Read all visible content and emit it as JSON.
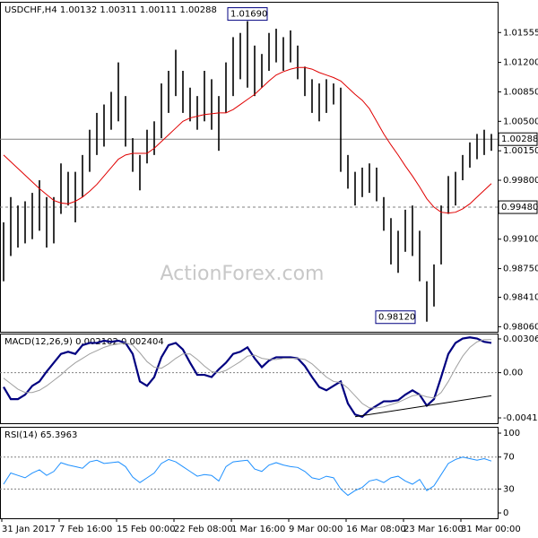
{
  "chart_data": [
    {
      "type": "hilo",
      "title": "USDCHF,H4 1.00132 1.00311 1.00111 1.00288",
      "watermark": "ActionForex.com",
      "categories": [
        "31 Jan 2017",
        null,
        null,
        null,
        null,
        null,
        null,
        null,
        "7 Feb 16:00",
        null,
        null,
        null,
        null,
        null,
        null,
        null,
        "15 Feb 00:00",
        null,
        null,
        null,
        null,
        null,
        null,
        null,
        "22 Feb 08:00",
        null,
        null,
        null,
        null,
        null,
        null,
        null,
        "1 Mar 16:00",
        null,
        null,
        null,
        null,
        null,
        null,
        null,
        "9 Mar 00:00",
        null,
        null,
        null,
        null,
        null,
        null,
        null,
        "16 Mar 08:00",
        null,
        null,
        null,
        null,
        null,
        null,
        null,
        "23 Mar 16:00",
        null,
        null,
        null,
        null,
        null,
        null,
        null,
        "31 Mar 00:00",
        null,
        null,
        null,
        null
      ],
      "color": "#000000",
      "high": [
        0.993,
        0.996,
        0.995,
        0.9955,
        0.9965,
        0.998,
        0.996,
        0.996,
        1.0,
        0.999,
        0.999,
        1.001,
        1.004,
        1.006,
        1.007,
        1.0085,
        1.012,
        1.008,
        1.003,
        1.001,
        1.004,
        1.005,
        1.0095,
        1.011,
        1.0135,
        1.011,
        1.009,
        1.008,
        1.011,
        1.01,
        1.008,
        1.012,
        1.015,
        1.0155,
        1.0169,
        1.014,
        1.013,
        1.0155,
        1.016,
        1.015,
        1.0158,
        1.014,
        1.0115,
        1.01,
        1.0095,
        1.01,
        1.0095,
        1.009,
        1.001,
        0.999,
        0.9995,
        1.0,
        0.9995,
        0.996,
        0.9935,
        0.992,
        0.9945,
        0.995,
        0.992,
        0.986,
        0.988,
        0.995,
        0.9985,
        0.999,
        1.001,
        1.0025,
        1.0035,
        1.004,
        1.0035
      ],
      "low": [
        0.986,
        0.989,
        0.99,
        0.9905,
        0.991,
        0.992,
        0.99,
        0.9905,
        0.994,
        0.995,
        0.993,
        0.996,
        0.999,
        1.001,
        1.002,
        1.004,
        1.005,
        1.002,
        0.999,
        0.9968,
        1.0,
        1.001,
        1.003,
        1.006,
        1.008,
        1.006,
        1.005,
        1.004,
        1.005,
        1.004,
        1.0015,
        1.006,
        1.008,
        1.01,
        1.009,
        1.008,
        1.009,
        1.011,
        1.012,
        1.011,
        1.012,
        1.01,
        1.008,
        1.006,
        1.005,
        1.006,
        1.007,
        0.999,
        0.997,
        0.995,
        0.996,
        0.9965,
        0.9955,
        0.992,
        0.988,
        0.987,
        0.9895,
        0.989,
        0.986,
        0.9812,
        0.983,
        0.988,
        0.994,
        0.995,
        0.998,
        0.9995,
        1.0005,
        1.001,
        1.0015
      ],
      "ma": {
        "color": "#e00000",
        "values": [
          1.001,
          1.0002,
          0.9994,
          0.9986,
          0.9978,
          0.997,
          0.9963,
          0.9956,
          0.9953,
          0.9952,
          0.9955,
          0.996,
          0.9967,
          0.9975,
          0.9985,
          0.9995,
          1.0005,
          1.001,
          1.0012,
          1.0012,
          1.0012,
          1.0018,
          1.0026,
          1.0034,
          1.0042,
          1.005,
          1.0054,
          1.0056,
          1.0058,
          1.0059,
          1.006,
          1.006,
          1.0064,
          1.007,
          1.0076,
          1.0082,
          1.009,
          1.0098,
          1.0105,
          1.0109,
          1.0112,
          1.0114,
          1.0114,
          1.0112,
          1.0108,
          1.0105,
          1.0102,
          1.0098,
          1.009,
          1.0082,
          1.0075,
          1.0065,
          1.005,
          1.0035,
          1.0022,
          1.001,
          0.9997,
          0.9985,
          0.9972,
          0.9958,
          0.9948,
          0.9942,
          0.9941,
          0.9942,
          0.9946,
          0.9952,
          0.996,
          0.9968,
          0.9976
        ]
      },
      "ylim": [
        0.98,
        1.0192
      ],
      "yticks": [
        1.01555,
        {
          "value": 1.012,
          "label": "1.01200"
        },
        {
          "value": 1.0085,
          "label": "1.00850"
        },
        {
          "value": 1.005,
          "label": "1.00500"
        },
        {
          "value": 1.0015,
          "label": "1.00150"
        },
        {
          "value": 0.998,
          "label": "0.99800"
        },
        {
          "value": 0.991,
          "label": "0.99100"
        },
        {
          "value": 0.9875,
          "label": "0.98750"
        },
        {
          "value": 0.9841,
          "label": "0.98410"
        },
        {
          "value": 0.9806,
          "label": "0.98060"
        }
      ],
      "hlines": [
        {
          "value": 1.00288,
          "label": "1.00288",
          "style": "solid"
        },
        {
          "value": 0.9948,
          "label": "0.99480",
          "style": "dashed"
        }
      ],
      "annotations": [
        {
          "index": 34,
          "value": 1.0169,
          "label": "1.01690",
          "position": "above"
        },
        {
          "index": 59,
          "value": 0.9812,
          "label": "0.98120",
          "position": "below-left"
        }
      ]
    },
    {
      "type": "macd",
      "title": "MACD(12,26,9) 0.002102 0.002404",
      "series": [
        {
          "color": "#000080",
          "width": 2.2,
          "values": [
            -0.0013,
            -0.0024,
            -0.0024,
            -0.002,
            -0.0012,
            -0.0008,
            0.0001,
            0.0009,
            0.0017,
            0.0019,
            0.0017,
            0.0025,
            0.0027,
            0.0027,
            0.0029,
            0.0028,
            0.0029,
            0.0027,
            0.0017,
            -0.0008,
            -0.0012,
            -0.0004,
            0.0014,
            0.0025,
            0.0027,
            0.0021,
            0.0009,
            -0.0002,
            -0.0002,
            -0.0004,
            0.0003,
            0.0009,
            0.0017,
            0.0019,
            0.0023,
            0.0013,
            0.0005,
            0.0011,
            0.0014,
            0.0014,
            0.0014,
            0.0013,
            0.0006,
            -0.0004,
            -0.0013,
            -0.0016,
            -0.0012,
            -0.0008,
            -0.0028,
            -0.0038,
            -0.004,
            -0.0034,
            -0.003,
            -0.0026,
            -0.0026,
            -0.0025,
            -0.002,
            -0.0016,
            -0.002,
            -0.003,
            -0.0024,
            -0.0004,
            0.0017,
            0.0027,
            0.0031,
            0.0032,
            0.0031,
            0.0028,
            0.0027
          ]
        },
        {
          "color": "#a0a0a0",
          "width": 1,
          "values": [
            -0.0005,
            -0.001,
            -0.0015,
            -0.0018,
            -0.0018,
            -0.0016,
            -0.0012,
            -0.0007,
            -0.0002,
            0.0004,
            0.0009,
            0.0013,
            0.0017,
            0.002,
            0.0023,
            0.0025,
            0.0026,
            0.0027,
            0.0025,
            0.0018,
            0.001,
            0.0005,
            0.0004,
            0.0008,
            0.0013,
            0.0017,
            0.0017,
            0.0012,
            0.0006,
            0.0001,
            0.0,
            0.0002,
            0.0006,
            0.001,
            0.0015,
            0.0016,
            0.0013,
            0.0012,
            0.0012,
            0.0013,
            0.0013,
            0.0013,
            0.0012,
            0.0008,
            0.0002,
            -0.0004,
            -0.0008,
            -0.0009,
            -0.0014,
            -0.0021,
            -0.0028,
            -0.0032,
            -0.0032,
            -0.0031,
            -0.0029,
            -0.0027,
            -0.0024,
            -0.0021,
            -0.002,
            -0.0022,
            -0.0023,
            -0.0018,
            -0.0008,
            0.0004,
            0.0015,
            0.0023,
            0.0028,
            0.003,
            0.003
          ]
        }
      ],
      "trendline": {
        "x": [
          49,
          68
        ],
        "y": [
          -0.004,
          -0.0021
        ]
      },
      "ylim": [
        -0.00459,
        0.00355
      ],
      "yticks": [
        0.003063,
        {
          "value": 0,
          "label": "0.00"
        },
        -0.004104
      ]
    },
    {
      "type": "rsi",
      "title": "RSI(14) 65.3963",
      "series": [
        {
          "color": "#1e90ff",
          "width": 1,
          "values": [
            36,
            50,
            47,
            44,
            50,
            54,
            47,
            52,
            63,
            60,
            58,
            56,
            64,
            66,
            62,
            63,
            64,
            58,
            45,
            38,
            44,
            50,
            62,
            67,
            64,
            58,
            52,
            46,
            48,
            47,
            40,
            58,
            64,
            65,
            66,
            55,
            52,
            60,
            63,
            60,
            58,
            57,
            52,
            44,
            42,
            46,
            44,
            30,
            22,
            28,
            32,
            40,
            42,
            38,
            44,
            46,
            40,
            36,
            42,
            28,
            34,
            48,
            62,
            67,
            70,
            68,
            66,
            68,
            65
          ]
        }
      ],
      "levels": [
        70,
        30
      ],
      "ylim": [
        -6.7,
        107.9
      ],
      "yticks": [
        100,
        70,
        30,
        0
      ]
    }
  ]
}
